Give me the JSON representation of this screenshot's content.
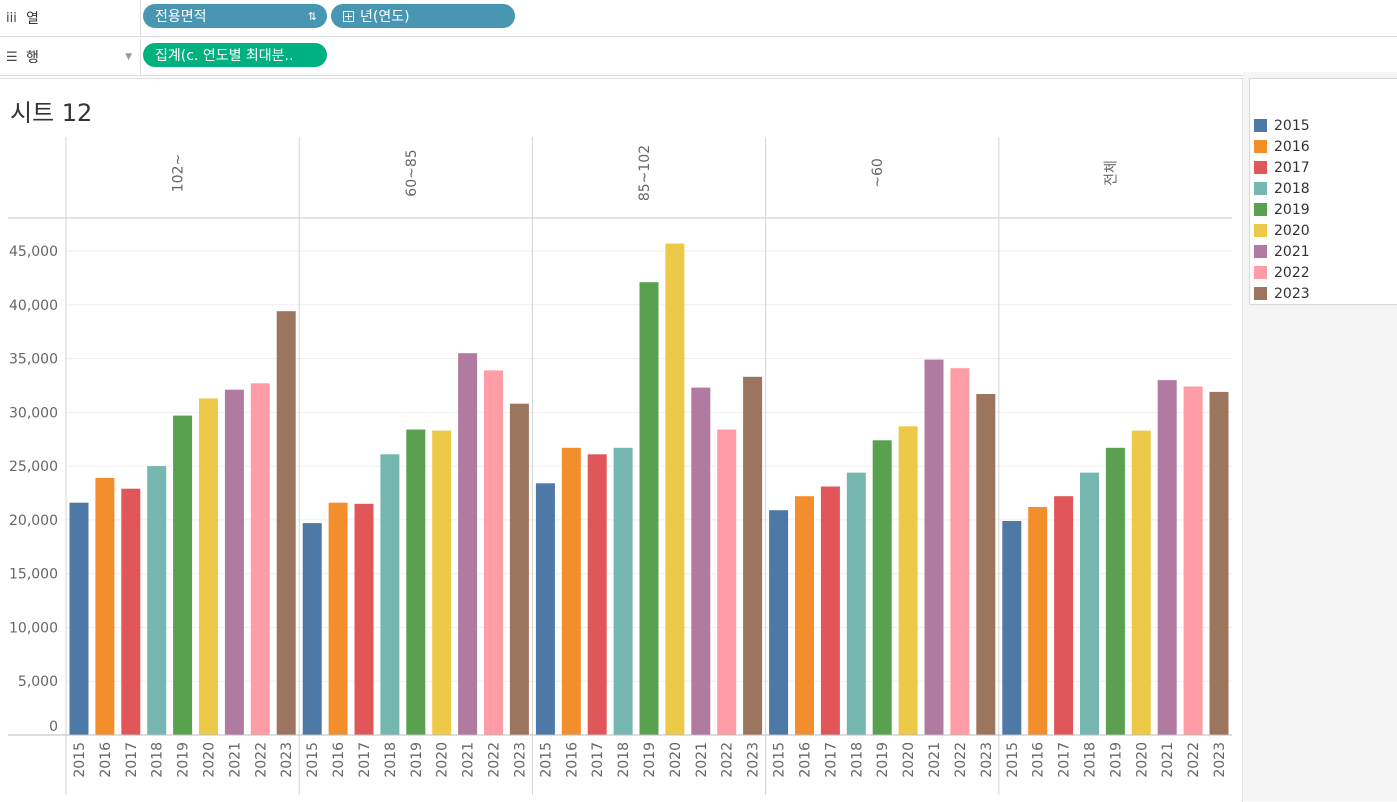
{
  "shelves": {
    "columns": {
      "label": "열",
      "pills": [
        "전용면적",
        "년(연도)"
      ]
    },
    "rows": {
      "label": "행",
      "pills": [
        "집계(c. 연도별 최대분.."
      ]
    }
  },
  "sheet_title": "시트 12",
  "legend": {
    "items": [
      {
        "label": "2015",
        "color": "#4e79a7"
      },
      {
        "label": "2016",
        "color": "#f28e2b"
      },
      {
        "label": "2017",
        "color": "#e15759"
      },
      {
        "label": "2018",
        "color": "#76b7b2"
      },
      {
        "label": "2019",
        "color": "#59a14f"
      },
      {
        "label": "2020",
        "color": "#edc948"
      },
      {
        "label": "2021",
        "color": "#b07aa1"
      },
      {
        "label": "2022",
        "color": "#ff9da7"
      },
      {
        "label": "2023",
        "color": "#9c755f"
      }
    ]
  },
  "chart_data": {
    "type": "bar",
    "ylim": [
      0,
      48000
    ],
    "yticks": [
      0,
      5000,
      10000,
      15000,
      20000,
      25000,
      30000,
      35000,
      40000,
      45000
    ],
    "ytick_labels": [
      "0",
      "5,000",
      "10,000",
      "15,000",
      "20,000",
      "25,000",
      "30,000",
      "35,000",
      "40,000",
      "45,000"
    ],
    "categories": [
      "2015",
      "2016",
      "2017",
      "2018",
      "2019",
      "2020",
      "2021",
      "2022",
      "2023"
    ],
    "grid": true,
    "legend_position": "right",
    "panels": [
      {
        "name": "102~",
        "values": [
          21600,
          23900,
          22900,
          25000,
          29700,
          31300,
          32100,
          32700,
          39400
        ]
      },
      {
        "name": "60~85",
        "values": [
          19700,
          21600,
          21500,
          26100,
          28400,
          28300,
          35500,
          33900,
          30800
        ]
      },
      {
        "name": "85~102",
        "values": [
          23400,
          26700,
          26100,
          26700,
          42100,
          45700,
          32300,
          28400,
          33300
        ]
      },
      {
        "name": "~60",
        "values": [
          20900,
          22200,
          23100,
          24400,
          27400,
          28700,
          34900,
          34100,
          31700
        ]
      },
      {
        "name": "전체",
        "values": [
          19900,
          21200,
          22200,
          24400,
          26700,
          28300,
          33000,
          32400,
          31900
        ]
      }
    ]
  }
}
